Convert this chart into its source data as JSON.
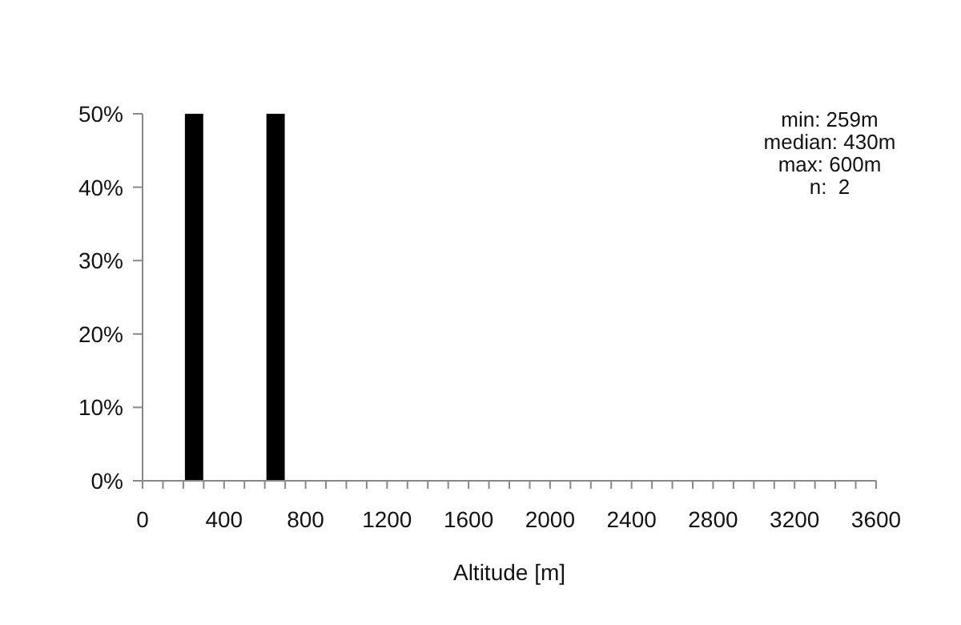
{
  "chart_data": {
    "type": "histogram",
    "xlabel": "Altitude [m]",
    "bins": [
      0,
      100,
      200,
      300,
      400,
      500,
      600,
      700,
      800,
      900,
      1000,
      1100,
      1200,
      1300,
      1400,
      1500,
      1600,
      1700,
      1800,
      1900,
      2000,
      2100,
      2200,
      2300,
      2400,
      2500,
      2600,
      2700,
      2800,
      2900,
      3000,
      3100,
      3200,
      3300,
      3400,
      3500,
      3600
    ],
    "values": [
      0,
      0,
      50,
      0,
      0,
      0,
      50,
      0,
      0,
      0,
      0,
      0,
      0,
      0,
      0,
      0,
      0,
      0,
      0,
      0,
      0,
      0,
      0,
      0,
      0,
      0,
      0,
      0,
      0,
      0,
      0,
      0,
      0,
      0,
      0,
      0
    ],
    "color": "#000000",
    "xlim": [
      0,
      3600
    ],
    "xticks": [
      0,
      {
        "value": 100,
        "label": null
      },
      {
        "value": 200,
        "label": null
      },
      {
        "value": 300,
        "label": null
      },
      400,
      {
        "value": 500,
        "label": null
      },
      {
        "value": 600,
        "label": null
      },
      {
        "value": 700,
        "label": null
      },
      800,
      {
        "value": 900,
        "label": null
      },
      {
        "value": 1000,
        "label": null
      },
      {
        "value": 1100,
        "label": null
      },
      1200,
      {
        "value": 1300,
        "label": null
      },
      {
        "value": 1400,
        "label": null
      },
      {
        "value": 1500,
        "label": null
      },
      1600,
      {
        "value": 1700,
        "label": null
      },
      {
        "value": 1800,
        "label": null
      },
      {
        "value": 1900,
        "label": null
      },
      2000,
      {
        "value": 2100,
        "label": null
      },
      {
        "value": 2200,
        "label": null
      },
      {
        "value": 2300,
        "label": null
      },
      2400,
      {
        "value": 2500,
        "label": null
      },
      {
        "value": 2600,
        "label": null
      },
      {
        "value": 2700,
        "label": null
      },
      2800,
      {
        "value": 2900,
        "label": null
      },
      {
        "value": 3000,
        "label": null
      },
      {
        "value": 3100,
        "label": null
      },
      3200,
      {
        "value": 3300,
        "label": null
      },
      {
        "value": 3400,
        "label": null
      },
      {
        "value": 3500,
        "label": null
      },
      3600
    ],
    "ylim": [
      0,
      50
    ],
    "yticks": [
      {
        "value": 0,
        "label": "0%"
      },
      {
        "value": 10,
        "label": "10%"
      },
      {
        "value": 20,
        "label": "20%"
      },
      {
        "value": 30,
        "label": "30%"
      },
      {
        "value": 40,
        "label": "40%"
      },
      {
        "value": 50,
        "label": "50%"
      }
    ],
    "grid": false,
    "legend": false,
    "annotations": [
      "min: 259m",
      "median: 430m",
      "max: 600m",
      "n:  2"
    ]
  }
}
